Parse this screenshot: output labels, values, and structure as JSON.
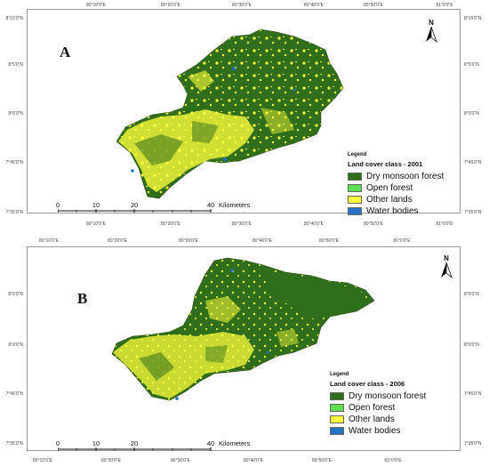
{
  "colors": {
    "dry_monsoon_forest": "#2f6e1a",
    "open_forest": "#5ee052",
    "other_lands": "#ffff3c",
    "water_bodies": "#2573c4"
  },
  "graticule": {
    "top_labels": [
      "80°10'0\"E",
      "80°20'0\"E",
      "80°30'0\"E",
      "80°40'0\"E",
      "80°50'0\"E",
      "81°0'0\"E"
    ],
    "bottom_labels": [
      "80°10'0\"E",
      "80°20'0\"E",
      "80°30'0\"E",
      "80°40'0\"E",
      "80°50'0\"E",
      "81°0'0\"E"
    ],
    "left_labels_a": [
      "8°15'0\"N",
      "8°5'0\"N",
      "8°0'0\"N",
      "7°45'0\"N",
      "7°35'0\"N"
    ],
    "right_labels_a": [
      "8°15'0\"N",
      "8°5'0\"N",
      "8°0'0\"N",
      "7°45'0\"N",
      "7°35'0\"N"
    ],
    "left_labels_b": [
      "8°5'0\"N",
      "8°0'0\"N",
      "7°45'0\"N",
      "7°35'0\"N"
    ],
    "right_labels_b": [
      "8°5'0\"N",
      "8°0'0\"N",
      "7°45'0\"N",
      "7°35'0\"N"
    ]
  },
  "north_arrow": {
    "letter": "N",
    "icon": "north-arrow-icon"
  },
  "scale": {
    "ticks": [
      "0",
      "10",
      "20",
      "40"
    ],
    "unit": "Kilometers"
  },
  "panels": [
    {
      "letter": "A",
      "legend_title": "Legend",
      "legend_subtitle": "Land cover class - 2001",
      "legend_items": [
        "Dry monsoon forest",
        "Open forest",
        "Other lands",
        "Water bodies"
      ]
    },
    {
      "letter": "B",
      "legend_title": "Legend",
      "legend_subtitle": "Land cover class - 2006",
      "legend_items": [
        "Dry monsoon forest",
        "Open forest",
        "Other lands",
        "Water bodies"
      ]
    }
  ]
}
